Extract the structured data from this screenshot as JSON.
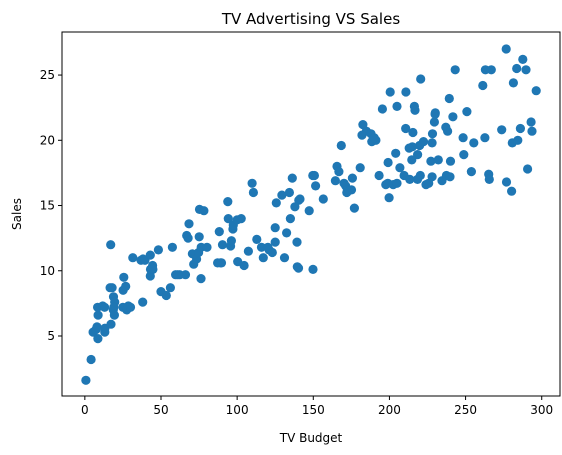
{
  "chart_data": {
    "type": "scatter",
    "title": "TV Advertising VS Sales",
    "xlabel": "TV Budget",
    "ylabel": "Sales",
    "xlim": [
      -15,
      312
    ],
    "ylim": [
      0.4,
      28.3
    ],
    "xticks": [
      0,
      50,
      100,
      150,
      200,
      250,
      300
    ],
    "yticks": [
      5,
      10,
      15,
      20,
      25
    ],
    "grid": false,
    "marker_color": "#1f77b4",
    "points": [
      [
        0.7,
        1.6
      ],
      [
        4.1,
        3.2
      ],
      [
        5.4,
        5.3
      ],
      [
        7.3,
        5.5
      ],
      [
        8.6,
        4.8
      ],
      [
        8.7,
        6.6
      ],
      [
        8.4,
        7.2
      ],
      [
        11.7,
        7.3
      ],
      [
        13.1,
        5.3
      ],
      [
        13.2,
        5.6
      ],
      [
        17.2,
        5.9
      ],
      [
        17.9,
        8.7
      ],
      [
        18.7,
        7.0
      ],
      [
        18.8,
        8.0
      ],
      [
        19.4,
        6.6
      ],
      [
        19.6,
        7.6
      ],
      [
        17.0,
        12.0
      ],
      [
        25.0,
        7.2
      ],
      [
        25.1,
        8.5
      ],
      [
        25.6,
        9.5
      ],
      [
        26.8,
        8.8
      ],
      [
        27.5,
        7.0
      ],
      [
        28.6,
        7.3
      ],
      [
        31.5,
        11.0
      ],
      [
        36.9,
        10.8
      ],
      [
        38.0,
        7.6
      ],
      [
        38.2,
        10.9
      ],
      [
        39.5,
        10.8
      ],
      [
        43.0,
        9.6
      ],
      [
        43.1,
        10.1
      ],
      [
        44.5,
        10.4
      ],
      [
        44.7,
        10.1
      ],
      [
        48.3,
        11.6
      ],
      [
        50.0,
        8.4
      ],
      [
        53.5,
        8.1
      ],
      [
        56.2,
        8.7
      ],
      [
        57.5,
        11.8
      ],
      [
        59.6,
        9.7
      ],
      [
        62.3,
        9.7
      ],
      [
        66.1,
        9.7
      ],
      [
        66.9,
        12.7
      ],
      [
        67.8,
        12.5
      ],
      [
        68.4,
        13.6
      ],
      [
        70.6,
        11.3
      ],
      [
        73.4,
        10.9
      ],
      [
        74.7,
        11.4
      ],
      [
        75.1,
        12.6
      ],
      [
        75.3,
        14.7
      ],
      [
        76.3,
        9.4
      ],
      [
        76.4,
        11.8
      ],
      [
        78.2,
        14.6
      ],
      [
        80.2,
        11.8
      ],
      [
        87.2,
        10.6
      ],
      [
        88.3,
        13.0
      ],
      [
        89.7,
        10.6
      ],
      [
        90.4,
        12.0
      ],
      [
        93.9,
        15.3
      ],
      [
        94.2,
        14.0
      ],
      [
        95.7,
        11.9
      ],
      [
        96.2,
        12.3
      ],
      [
        97.2,
        13.2
      ],
      [
        97.5,
        13.5
      ],
      [
        100.4,
        10.7
      ],
      [
        102.7,
        14.0
      ],
      [
        104.6,
        10.4
      ],
      [
        107.4,
        11.5
      ],
      [
        109.8,
        16.7
      ],
      [
        110.7,
        16.0
      ],
      [
        112.9,
        12.4
      ],
      [
        116.0,
        11.8
      ],
      [
        117.2,
        11.0
      ],
      [
        120.2,
        11.8
      ],
      [
        121.0,
        11.6
      ],
      [
        123.1,
        11.4
      ],
      [
        125.7,
        15.2
      ],
      [
        129.4,
        15.8
      ],
      [
        131.1,
        11.0
      ],
      [
        132.5,
        12.9
      ],
      [
        134.3,
        16.0
      ],
      [
        136.2,
        17.1
      ],
      [
        137.9,
        14.9
      ],
      [
        139.3,
        12.2
      ],
      [
        139.5,
        10.3
      ],
      [
        140.3,
        10.2
      ],
      [
        140.5,
        15.4
      ],
      [
        141.3,
        15.5
      ],
      [
        147.3,
        14.6
      ],
      [
        149.7,
        17.3
      ],
      [
        149.8,
        10.1
      ],
      [
        151.5,
        16.5
      ],
      [
        156.6,
        15.5
      ],
      [
        164.5,
        16.9
      ],
      [
        165.6,
        18.0
      ],
      [
        166.8,
        17.6
      ],
      [
        168.4,
        19.6
      ],
      [
        170.2,
        16.7
      ],
      [
        171.3,
        16.5
      ],
      [
        172.5,
        16.2
      ],
      [
        175.1,
        16.2
      ],
      [
        175.7,
        17.1
      ],
      [
        177.0,
        14.8
      ],
      [
        180.8,
        17.9
      ],
      [
        182.6,
        21.2
      ],
      [
        184.9,
        20.7
      ],
      [
        187.9,
        20.5
      ],
      [
        188.4,
        19.9
      ],
      [
        191.1,
        20.0
      ],
      [
        193.2,
        17.3
      ],
      [
        195.4,
        22.4
      ],
      [
        197.6,
        16.6
      ],
      [
        198.9,
        16.7
      ],
      [
        199.1,
        18.3
      ],
      [
        199.8,
        15.6
      ],
      [
        202.5,
        16.6
      ],
      [
        204.1,
        19.0
      ],
      [
        205.0,
        22.6
      ],
      [
        206.9,
        17.9
      ],
      [
        209.6,
        17.3
      ],
      [
        210.7,
        20.9
      ],
      [
        213.4,
        17.0
      ],
      [
        214.7,
        18.5
      ],
      [
        215.4,
        20.6
      ],
      [
        216.4,
        22.6
      ],
      [
        216.8,
        22.3
      ],
      [
        218.4,
        17.0
      ],
      [
        218.5,
        18.9
      ],
      [
        219.8,
        19.6
      ],
      [
        220.5,
        24.7
      ],
      [
        222.4,
        19.9
      ],
      [
        224.0,
        16.6
      ],
      [
        225.8,
        16.7
      ],
      [
        227.2,
        18.4
      ],
      [
        228.0,
        19.8
      ],
      [
        228.3,
        20.5
      ],
      [
        229.5,
        21.4
      ],
      [
        230.1,
        22.1
      ],
      [
        232.1,
        18.5
      ],
      [
        234.5,
        16.9
      ],
      [
        237.4,
        17.3
      ],
      [
        238.2,
        20.7
      ],
      [
        239.3,
        23.2
      ],
      [
        239.8,
        17.2
      ],
      [
        240.1,
        18.4
      ],
      [
        241.7,
        21.8
      ],
      [
        243.2,
        25.4
      ],
      [
        248.4,
        20.2
      ],
      [
        248.8,
        18.9
      ],
      [
        250.9,
        22.2
      ],
      [
        253.8,
        17.6
      ],
      [
        255.4,
        19.8
      ],
      [
        261.3,
        24.2
      ],
      [
        262.7,
        20.2
      ],
      [
        265.2,
        17.4
      ],
      [
        265.6,
        17.0
      ],
      [
        266.9,
        25.4
      ],
      [
        273.7,
        20.8
      ],
      [
        276.7,
        27.0
      ],
      [
        276.9,
        16.8
      ],
      [
        280.2,
        16.1
      ],
      [
        280.7,
        19.8
      ],
      [
        281.4,
        24.4
      ],
      [
        283.6,
        25.5
      ],
      [
        284.3,
        20.0
      ],
      [
        286.0,
        20.9
      ],
      [
        287.6,
        26.2
      ],
      [
        289.7,
        25.4
      ],
      [
        290.7,
        17.8
      ],
      [
        293.6,
        20.7
      ],
      [
        296.4,
        23.8
      ],
      [
        293.0,
        21.4
      ],
      [
        172.0,
        16.0
      ],
      [
        210.8,
        23.7
      ],
      [
        182.0,
        20.4
      ],
      [
        220.3,
        17.3
      ],
      [
        237.0,
        21.0
      ],
      [
        200.5,
        23.7
      ],
      [
        150.7,
        17.3
      ],
      [
        125.0,
        13.3
      ],
      [
        125.0,
        12.2
      ],
      [
        135.0,
        14.0
      ],
      [
        71.5,
        10.5
      ],
      [
        100.0,
        13.9
      ],
      [
        89.0,
        10.6
      ],
      [
        61.0,
        9.7
      ],
      [
        43.0,
        11.2
      ],
      [
        30.0,
        7.2
      ],
      [
        16.6,
        8.7
      ],
      [
        8.0,
        5.7
      ],
      [
        13.0,
        7.2
      ],
      [
        19.0,
        7.2
      ],
      [
        205.0,
        16.7
      ],
      [
        228.0,
        17.2
      ],
      [
        263.0,
        25.4
      ],
      [
        230.0,
        22.0
      ],
      [
        190.0,
        20.2
      ],
      [
        215.0,
        19.5
      ],
      [
        213.0,
        19.4
      ]
    ]
  }
}
